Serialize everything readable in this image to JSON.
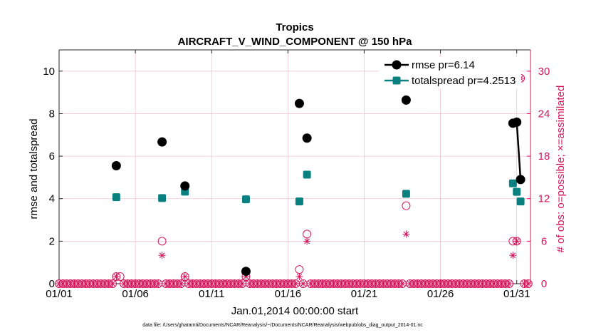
{
  "chart_data": {
    "type": "scatter",
    "title": "Tropics",
    "subtitle": "AIRCRAFT_V_WIND_COMPONENT @ 150 hPa",
    "xlabel": "Jan.01,2014 00:00:00 start",
    "ylabel_left": "rmse and totalspread",
    "ylabel_right": "# of obs: o=possible; ×=assimilated",
    "footnote": "data file: /Users/gharamti/Documents/NCAR/Reanalysis/~/Documents/NCAR/Reanalysis/webpub/obs_diag_output_2014-01.nc",
    "xlim": [
      1,
      31.9
    ],
    "ylim_left": [
      0,
      11
    ],
    "ylim_right": [
      0,
      33
    ],
    "x_ticks": [
      1,
      6,
      11,
      16,
      21,
      26,
      31
    ],
    "x_tick_labels": [
      "01/01",
      "01/06",
      "01/11",
      "01/16",
      "01/21",
      "01/26",
      "01/31"
    ],
    "y_left_ticks": [
      0,
      2,
      4,
      6,
      8,
      10
    ],
    "y_left_tick_labels": [
      "0",
      "2",
      "4",
      "6",
      "8",
      "10"
    ],
    "y_right_ticks": [
      0,
      6,
      12,
      18,
      24,
      30
    ],
    "y_right_tick_labels": [
      "0",
      "6",
      "12",
      "18",
      "24",
      "30"
    ],
    "colors": {
      "rmse": "#000000",
      "totalspread": "#0a8080",
      "obs": "#d4145a",
      "grid": "#f2c4d6"
    },
    "legend": {
      "position": "top-right",
      "entries": [
        {
          "label": "rmse pr=6.14",
          "key": "rmse"
        },
        {
          "label": "totalspread pr=4.2513",
          "key": "totalspread"
        }
      ]
    },
    "series": [
      {
        "name": "rmse",
        "x": [
          4.75,
          7.75,
          9.25,
          13.25,
          16.75,
          17.25,
          23.75,
          30.75,
          31.0,
          31.25
        ],
        "y": [
          5.55,
          6.67,
          4.6,
          0.58,
          8.48,
          6.85,
          8.64,
          7.55,
          7.6,
          4.9
        ]
      },
      {
        "name": "totalspread",
        "x": [
          4.75,
          7.75,
          9.25,
          13.25,
          16.75,
          17.25,
          23.75,
          30.75,
          31.0,
          31.25
        ],
        "y": [
          4.07,
          4.03,
          4.33,
          3.97,
          3.87,
          5.13,
          4.23,
          4.72,
          4.32,
          3.87
        ]
      },
      {
        "name": "obs_possible",
        "x": [
          4.75,
          5.0,
          7.75,
          9.25,
          13.25,
          16.75,
          17.25,
          23.75,
          30.75,
          31.0,
          31.25
        ],
        "y": [
          1,
          1,
          6,
          1,
          1,
          2,
          7,
          11,
          6,
          6,
          29
        ]
      },
      {
        "name": "obs_assimilated",
        "x": [
          4.75,
          7.75,
          9.25,
          13.25,
          16.75,
          17.25,
          23.75,
          30.75,
          31.0,
          31.25
        ],
        "y": [
          1,
          4,
          1,
          1,
          1,
          6,
          7,
          4,
          6,
          29
        ]
      }
    ],
    "rmse_connected_pairs": [
      [
        8,
        9
      ]
    ],
    "zero_obs_step_days": 0.25
  }
}
